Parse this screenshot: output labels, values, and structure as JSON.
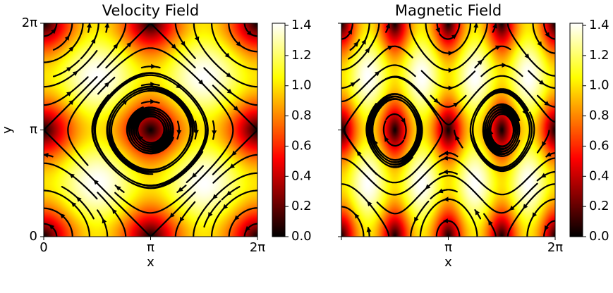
{
  "figure": {
    "colormap": "hot",
    "colors": {
      "stream": "#000000",
      "frame": "#000000",
      "background": "#ffffff"
    }
  },
  "chart_data": [
    {
      "type": "heatmap",
      "title": "Velocity Field",
      "xlabel": "x",
      "ylabel": "y",
      "xlim": [
        0,
        6.2832
      ],
      "ylim": [
        0,
        6.2832
      ],
      "x_tick_labels": [
        "0",
        "π",
        "2π"
      ],
      "y_tick_labels": [
        "0",
        "π",
        "2π"
      ],
      "field": "velocity magnitude |(-sin y, sin x)|",
      "overlay": "streamlines with arrows",
      "colorbar": {
        "min": 0.0,
        "max": 1.4142,
        "ticks": [
          "0.0",
          "0.2",
          "0.4",
          "0.6",
          "0.8",
          "1.0",
          "1.2",
          "1.4"
        ]
      }
    },
    {
      "type": "heatmap",
      "title": "Magnetic Field",
      "xlabel": "x",
      "ylabel": "",
      "xlim": [
        0,
        6.2832
      ],
      "ylim": [
        0,
        6.2832
      ],
      "x_tick_labels": [
        "π",
        "2π"
      ],
      "y_tick_labels": [],
      "field": "magnetic magnitude |(-sin y, sin 2x)|",
      "overlay": "streamlines with arrows",
      "colorbar": {
        "min": 0.0,
        "max": 1.4142,
        "ticks": [
          "0.0",
          "0.2",
          "0.4",
          "0.6",
          "0.8",
          "1.0",
          "1.2",
          "1.4"
        ]
      }
    }
  ]
}
